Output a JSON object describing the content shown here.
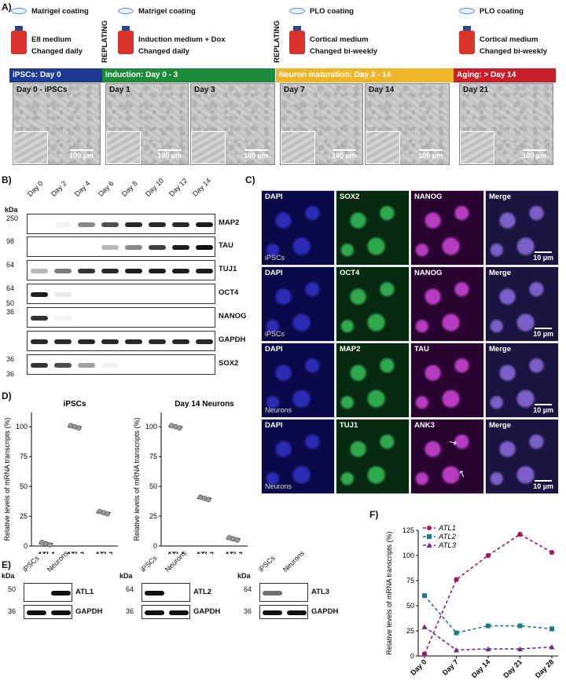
{
  "panels": {
    "A": "A)",
    "B": "B)",
    "C": "C)",
    "D": "D)",
    "E": "E)",
    "F": "F)"
  },
  "panelA": {
    "steps": [
      {
        "coat": "Matrigel coating",
        "medium": "E8 medium",
        "freq": "Changed daily"
      },
      {
        "coat": "Matrigel coating",
        "medium": "Induction medium + Dox",
        "freq": "Changed daily"
      },
      {
        "coat": "PLO coating",
        "medium": "Cortical medium",
        "freq": "Changed bi-weekly"
      },
      {
        "coat": "PLO coating",
        "medium": "Cortical medium",
        "freq": "Changed bi-weekly"
      }
    ],
    "replating": "REPLATING",
    "phases": [
      {
        "label": "iPSCs: Day 0",
        "color": "#1f3a93"
      },
      {
        "label": "Induction: Day 0 - 3",
        "color": "#1e8a3c"
      },
      {
        "label": "Neuron maturation: Day 3 - 14",
        "color": "#f0b429"
      },
      {
        "label": "Aging: > Day 14",
        "color": "#c8202a"
      }
    ],
    "images": [
      "Day 0 - iPSCs",
      "Day 1",
      "Day 3",
      "Day 7",
      "Day 14",
      "Day 21"
    ],
    "scale": "100 µm"
  },
  "panelB": {
    "kda_header": "kDa",
    "lanes": [
      "Day 0",
      "Day 2",
      "Day 4",
      "Day 6",
      "Day 8",
      "Day 10",
      "Day 12",
      "Day 14"
    ],
    "rows": [
      {
        "name": "MAP2",
        "kda": "250",
        "levels": [
          0,
          0.05,
          0.5,
          0.75,
          0.9,
          0.9,
          0.9,
          0.95
        ]
      },
      {
        "name": "TAU",
        "kda": "98",
        "levels": [
          0,
          0,
          0,
          0.3,
          0.5,
          0.8,
          0.95,
          1
        ]
      },
      {
        "name": "TUJ1",
        "kda": "64",
        "levels": [
          0.3,
          0.55,
          0.85,
          0.9,
          0.95,
          0.95,
          0.95,
          0.95
        ]
      },
      {
        "name": "OCT4",
        "kda": "64",
        "kda2": "50",
        "levels": [
          0.95,
          0.1,
          0,
          0,
          0,
          0,
          0,
          0
        ]
      },
      {
        "name": "NANOG",
        "kda": "36",
        "levels": [
          0.85,
          0.05,
          0,
          0,
          0,
          0,
          0,
          0
        ]
      },
      {
        "name": "GAPDH",
        "kda": "",
        "levels": [
          0.9,
          0.9,
          0.9,
          0.9,
          0.9,
          0.9,
          0.9,
          0.9
        ]
      },
      {
        "name": "SOX2",
        "kda": "36",
        "kda2": "36",
        "levels": [
          0.85,
          0.75,
          0.4,
          0.05,
          0,
          0,
          0,
          0
        ]
      }
    ]
  },
  "panelC": {
    "rows": [
      {
        "cols": [
          "DAPI",
          "SOX2",
          "NANOG",
          "Merge"
        ],
        "sub": "iPSCs",
        "scale": "10 µm"
      },
      {
        "cols": [
          "DAPI",
          "OCT4",
          "NANOG",
          "Merge"
        ],
        "sub": "iPSCs",
        "scale": "10 µm"
      },
      {
        "cols": [
          "DAPI",
          "MAP2",
          "TAU",
          "Merge"
        ],
        "sub": "Neurons",
        "scale": "10 µm"
      },
      {
        "cols": [
          "DAPI",
          "TUJ1",
          "ANK3",
          "Merge"
        ],
        "sub": "Neurons",
        "scale": "10 µm"
      }
    ]
  },
  "panelD": {
    "ylabel": "Relative levels of mRNA transcripts (%)",
    "yticks": [
      "0",
      "25",
      "50",
      "75",
      "100"
    ],
    "plots": [
      {
        "title": "iPSCs",
        "chart_data": {
          "type": "scatter",
          "categories": [
            "ATL1",
            "ATL2",
            "ATL3"
          ],
          "values": [
            2,
            100,
            28
          ],
          "ylim": [
            0,
            112
          ]
        }
      },
      {
        "title": "Day 14 Neurons",
        "chart_data": {
          "type": "scatter",
          "categories": [
            "ATL1",
            "ATL2",
            "ATL3"
          ],
          "values": [
            100,
            40,
            6
          ],
          "ylim": [
            0,
            112
          ]
        }
      }
    ]
  },
  "panelE": {
    "kda_header": "kDa",
    "lanes": [
      "iPSCs",
      "Neurons"
    ],
    "blots": [
      {
        "protein": "ATL1",
        "kda": "50",
        "pattern": [
          0,
          1
        ]
      },
      {
        "protein": "ATL2",
        "kda": "64",
        "pattern": [
          1,
          0
        ]
      },
      {
        "protein": "ATL3",
        "kda": "64",
        "pattern": [
          0.6,
          0
        ]
      }
    ],
    "loading": "GAPDH",
    "kda_gapdh": "36"
  },
  "chart_data": {
    "type": "line",
    "categories": [
      "Day 0",
      "Day 7",
      "Day 14",
      "Day 21",
      "Day 28"
    ],
    "series": [
      {
        "name": "ATL1",
        "values": [
          2,
          76,
          100,
          121,
          103
        ],
        "color": "#a3195b"
      },
      {
        "name": "ATL2",
        "values": [
          60,
          23,
          30,
          30,
          27
        ],
        "color": "#1a7a8a"
      },
      {
        "name": "ATL3",
        "values": [
          29,
          6,
          7,
          7,
          9
        ],
        "color": "#6b2a8c"
      }
    ],
    "ylabel": "Relative levels of mRNA transcripts (%)",
    "yticks": [
      "0",
      "25",
      "50",
      "75",
      "100",
      "125"
    ],
    "ylim": [
      0,
      125
    ],
    "legend": "top-left"
  }
}
